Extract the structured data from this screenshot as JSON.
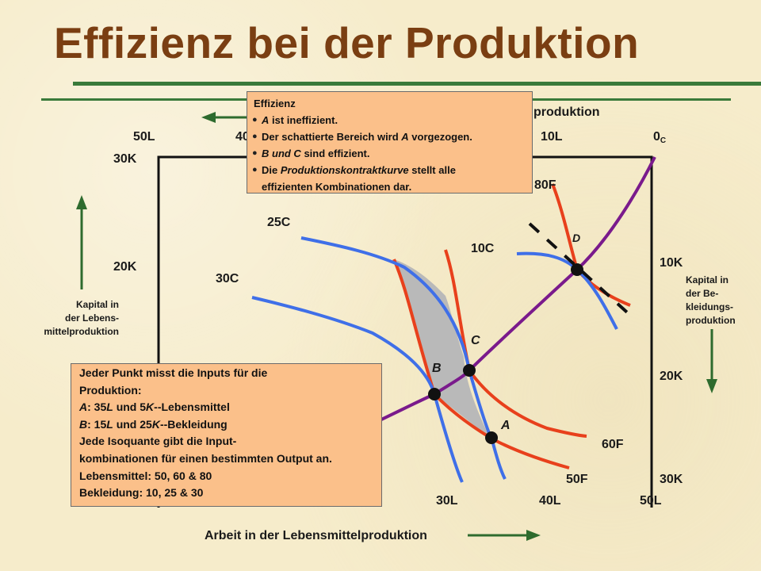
{
  "title": "Effizienz bei der Produktion",
  "top_axis": {
    "label_partial": "produktion",
    "ticks": [
      "50L",
      "40",
      "10L"
    ],
    "origin": "0",
    "origin_sub": "C"
  },
  "left_axis": {
    "ticks": [
      "30K",
      "20K"
    ],
    "label_lines": [
      "Kapital in",
      "der Lebens-",
      "mittelproduktion"
    ]
  },
  "right_axis": {
    "ticks": [
      "10K",
      "20K",
      "30K"
    ],
    "label_lines": [
      "Kapital in",
      "der Be-",
      "kleidungs-",
      "produktion"
    ]
  },
  "bottom_axis": {
    "ticks": [
      "30L",
      "40L",
      "50L"
    ],
    "label": "Arbeit in der Lebensmittelproduktion"
  },
  "isoquants_food": [
    "50F",
    "60F",
    "80F"
  ],
  "isoquants_clothing": [
    "10C",
    "25C",
    "30C"
  ],
  "points": {
    "A": "A",
    "B": "B",
    "C": "C",
    "D": "D"
  },
  "info_box": {
    "heading": "Effizienz",
    "items": [
      {
        "prefix": "A",
        "text": " ist ineffizient."
      },
      {
        "prefix": "",
        "text": "Der schattierte Bereich wird ",
        "em": "A",
        "suffix": " vorgezogen."
      },
      {
        "prefix": "B und C",
        "text": " sind effizient."
      },
      {
        "prefix": "",
        "text": "Die ",
        "em": "Produktionskontraktkurve",
        "suffix": " stellt alle"
      }
    ],
    "last_line": "effizienten Kombinationen dar."
  },
  "note_box": {
    "line1": "Jeder Punkt misst die Inputs für die",
    "line2": "Produktion:",
    "line3_em": "A",
    "line3": ": 35",
    "line3_l": "L",
    "line3_mid": " und 5",
    "line3_k": "K",
    "line3_end": "--Lebensmittel",
    "line4_em": "B",
    "line4": ": 15",
    "line4_l": "L",
    "line4_mid": " und 25",
    "line4_k": "K",
    "line4_end": "--Bekleidung",
    "line5": "Jede Isoquante gibt die Input-",
    "line6": "kombinationen  für einen bestimmten Output an.",
    "line7": "Lebensmittel: 50, 60 & 80",
    "line8": "Bekleidung: 10, 25 & 30"
  },
  "colors": {
    "title": "#7a3e12",
    "food_isoquant": "#e8401c",
    "clothing_isoquant": "#3f6fe8",
    "contract_curve": "#7a1a8c",
    "shaded_region": "#b9b9b9",
    "arrow": "#2e6b2e",
    "box_fill": "#fbc08a"
  }
}
